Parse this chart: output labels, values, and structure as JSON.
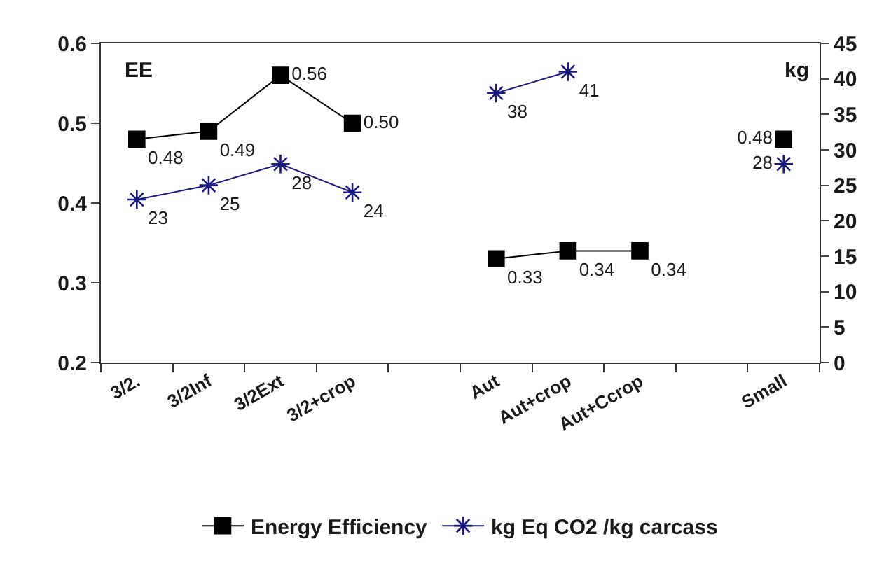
{
  "chart_data": {
    "type": "line",
    "ylabel": "EE",
    "y2label": "kg",
    "categories": [
      "3/2.",
      "3/2Inf",
      "3/2Ext",
      "3/2+crop",
      null,
      "Aut",
      "Aut+crop",
      "Aut+Ccrop",
      null,
      "Small"
    ],
    "series": [
      {
        "name": "Energy Efficiency",
        "color": "#000000",
        "marker": "square",
        "values": [
          0.48,
          0.49,
          0.56,
          0.5,
          null,
          0.33,
          0.34,
          0.34,
          null,
          0.48
        ],
        "value_labels": [
          "0.48",
          "0.49",
          "0.56",
          "0.50",
          null,
          "0.33",
          "0.34",
          "0.34",
          null,
          "0.48"
        ]
      },
      {
        "name": "kg Eq CO2 /kg carcass",
        "color": "#1a1a80",
        "marker": "cross",
        "axis": "y2",
        "values": [
          23,
          25,
          28,
          24,
          null,
          38,
          41,
          null,
          null,
          28
        ],
        "value_labels": [
          "23",
          "25",
          "28",
          "24",
          null,
          "38",
          "41",
          null,
          null,
          "28"
        ]
      }
    ],
    "ylim": [
      0.2,
      0.6
    ],
    "yticks": [
      0.2,
      0.3,
      0.4,
      0.5,
      0.6
    ],
    "y2lim": [
      0,
      45
    ],
    "y2ticks": [
      0,
      5,
      10,
      15,
      20,
      25,
      30,
      35,
      40,
      45
    ],
    "legend": "bottom",
    "line_style": "solid"
  }
}
